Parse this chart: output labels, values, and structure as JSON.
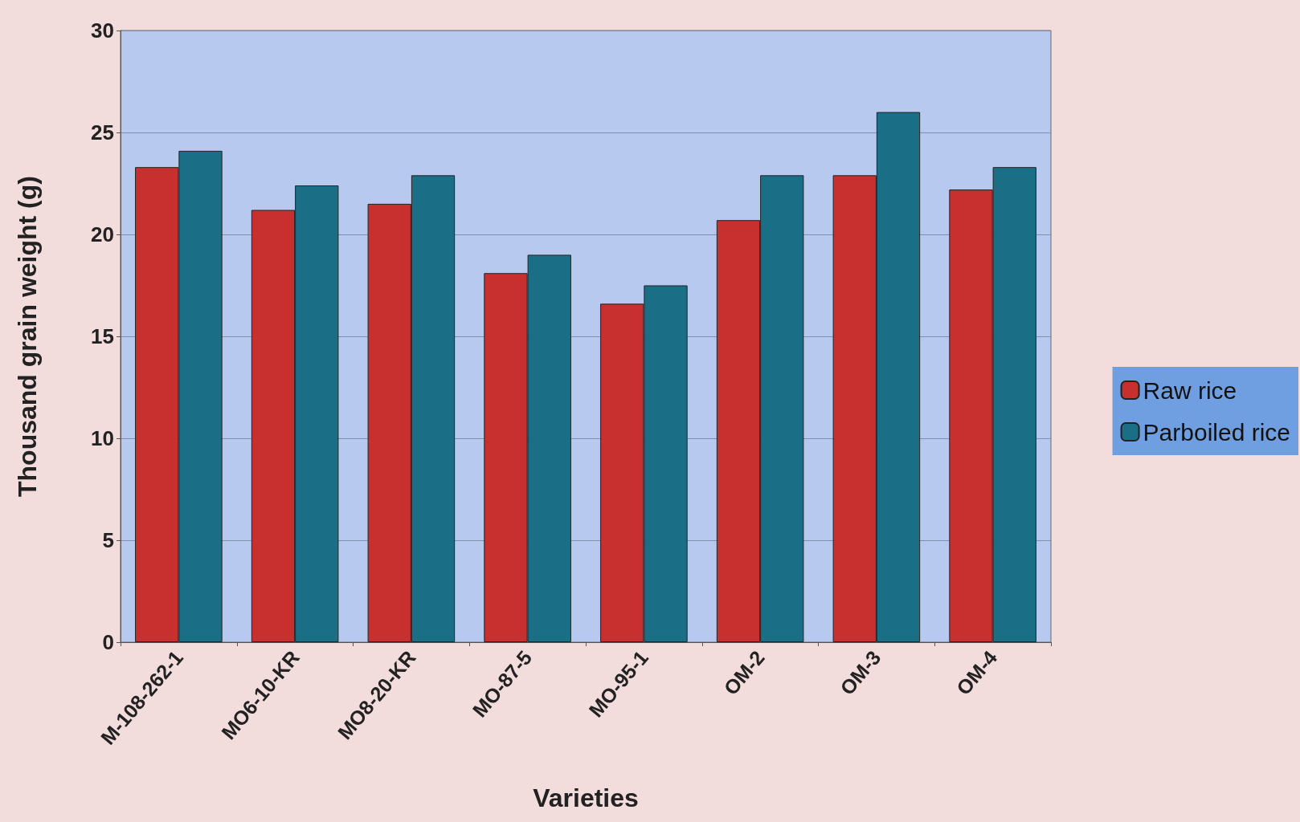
{
  "chart_data": {
    "type": "bar",
    "xlabel": "Varieties",
    "ylabel": "Thousand grain weight (g)",
    "categories": [
      "M-108-262-1",
      "MO6-10-KR",
      "MO8-20-KR",
      "MO-87-5",
      "MO-95-1",
      "OM-2",
      "OM-3",
      "OM-4"
    ],
    "series": [
      {
        "name": "Raw rice",
        "color": "#c8302f",
        "values": [
          23.3,
          21.2,
          21.5,
          18.1,
          16.6,
          20.7,
          22.9,
          22.2
        ]
      },
      {
        "name": "Parboiled rice",
        "color": "#1a6f86",
        "values": [
          24.1,
          22.4,
          22.9,
          19.0,
          17.5,
          22.9,
          26.0,
          23.3
        ]
      }
    ],
    "ylim": [
      0,
      30
    ],
    "yticks": [
      0,
      5,
      10,
      15,
      20,
      25,
      30
    ],
    "grid": "y",
    "legend": "right"
  }
}
